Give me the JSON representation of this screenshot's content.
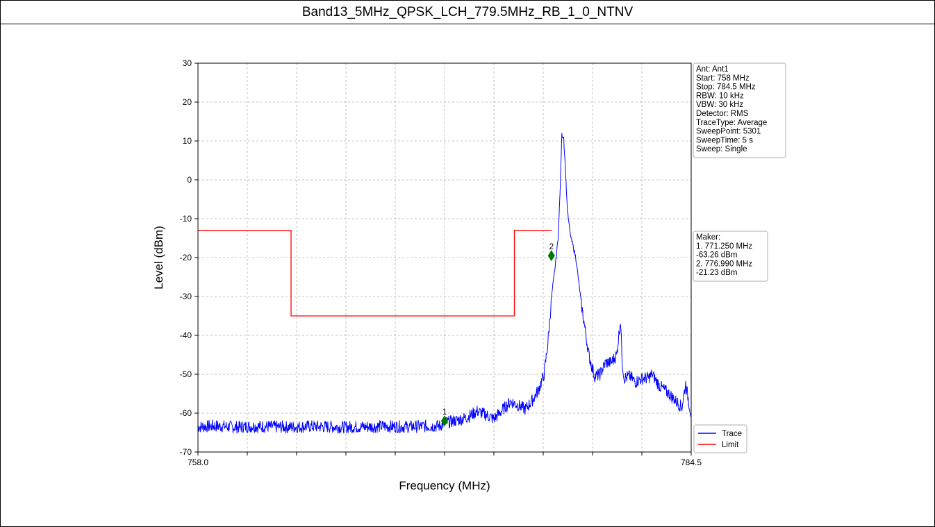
{
  "title": "Band13_5MHz_QPSK_LCH_779.5MHz_RB_1_0_NTNV",
  "chart_data": {
    "type": "line",
    "xlabel": "Frequency (MHz)",
    "ylabel": "Level (dBm)",
    "xlim": [
      758.0,
      784.5
    ],
    "ylim": [
      -70,
      30
    ],
    "x_tick_labels": [
      "758.0",
      "784.5"
    ],
    "y_ticks": [
      30,
      20,
      10,
      0,
      -10,
      -20,
      -30,
      -40,
      -50,
      -60,
      -70
    ],
    "grid": true,
    "legend_position": "bottom-right",
    "series": [
      {
        "name": "Trace",
        "color": "#0000ff",
        "x": [
          758.0,
          759.0,
          760.0,
          761.0,
          762.0,
          763.0,
          764.0,
          765.0,
          766.0,
          767.0,
          768.0,
          769.0,
          770.0,
          771.0,
          771.25,
          771.8,
          772.2,
          772.5,
          773.0,
          773.5,
          773.9,
          774.3,
          774.8,
          775.2,
          775.6,
          776.0,
          776.3,
          776.6,
          776.8,
          777.0,
          777.2,
          777.35,
          777.45,
          777.55,
          777.65,
          777.75,
          777.85,
          778.0,
          778.3,
          778.6,
          779.0,
          779.3,
          779.6,
          779.9,
          780.2,
          780.5,
          780.7,
          780.8,
          780.9,
          781.2,
          781.5,
          781.9,
          782.2,
          782.4,
          782.8,
          783.3,
          783.7,
          783.9,
          784.0,
          784.2,
          784.5
        ],
        "y": [
          -63.5,
          -63.3,
          -63.6,
          -63.4,
          -63.5,
          -63.6,
          -63.4,
          -63.5,
          -63.6,
          -63.5,
          -63.4,
          -63.5,
          -63.4,
          -63.3,
          -62.5,
          -62.0,
          -61.5,
          -61.0,
          -59.5,
          -60.5,
          -61.5,
          -59.5,
          -57.0,
          -58.0,
          -59.0,
          -56.5,
          -54.0,
          -50.0,
          -42.0,
          -30.0,
          -22.0,
          -15.0,
          -4.0,
          11.5,
          11.0,
          2.0,
          -8.0,
          -14.0,
          -20.0,
          -32.0,
          -45.0,
          -50.5,
          -50.0,
          -47.0,
          -47.0,
          -45.0,
          -36.0,
          -47.0,
          -51.0,
          -50.5,
          -52.0,
          -51.0,
          -51.0,
          -50.0,
          -53.0,
          -55.0,
          -57.0,
          -58.0,
          -58.5,
          -52.5,
          -60.5
        ]
      },
      {
        "name": "Limit",
        "color": "#ff0000",
        "x": [
          758.0,
          763.0,
          763.0,
          775.0,
          775.0,
          777.0
        ],
        "y": [
          -13,
          -13,
          -35,
          -35,
          -13,
          -13
        ]
      }
    ],
    "markers": [
      {
        "label": "1",
        "x": 771.25,
        "y": -62.0
      },
      {
        "label": "2",
        "x": 776.99,
        "y": -19.5
      }
    ]
  },
  "settings_box": {
    "lines": [
      "Ant: Ant1",
      "Start: 758 MHz",
      "Stop: 784.5 MHz",
      "RBW: 10 kHz",
      "VBW: 30 kHz",
      "Detector: RMS",
      "TraceType: Average",
      "SweepPoint: 5301",
      "SweepTime: 5 s",
      "Sweep: Single"
    ]
  },
  "marker_box": {
    "lines": [
      "Maker:",
      "1. 771.250 MHz",
      "    -63.26 dBm",
      "2. 776.990 MHz",
      "    -21.23 dBm"
    ]
  },
  "legend": {
    "items": [
      {
        "label": "Trace",
        "color": "#0000ff"
      },
      {
        "label": "Limit",
        "color": "#ff0000"
      }
    ]
  },
  "colors": {
    "marker": "#007a00",
    "grid": "#b0b0b0"
  }
}
